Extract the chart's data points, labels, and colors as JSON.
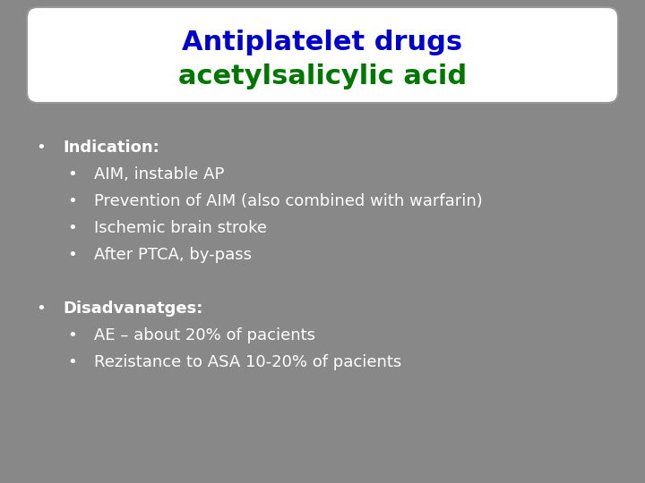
{
  "title_line1": "Antiplatelet drugs",
  "title_line2": "acetylsalicylic acid",
  "title_color1": "#0000cc",
  "title_color2": "#007700",
  "title_fontsize": 22,
  "bg_color": "#888888",
  "outer_bg": "#888888",
  "header_bg": "#ffffff",
  "header_border": "#999999",
  "text_color": "#ffffff",
  "body_lines": [
    {
      "text": "Indication:",
      "level": 0,
      "bold": true
    },
    {
      "text": "AIM, instable AP",
      "level": 1,
      "bold": false
    },
    {
      "text": "Prevention of AIM (also combined with warfarin)",
      "level": 1,
      "bold": false
    },
    {
      "text": "Ischemic brain stroke",
      "level": 1,
      "bold": false
    },
    {
      "text": "After PTCA, by-pass",
      "level": 1,
      "bold": false
    },
    {
      "text": "",
      "level": -1,
      "bold": false
    },
    {
      "text": "",
      "level": -1,
      "bold": false
    },
    {
      "text": "Disadvanatges:",
      "level": 0,
      "bold": true
    },
    {
      "text": "AE – about 20% of pacients",
      "level": 1,
      "bold": false
    },
    {
      "text": "Rezistance to ASA 10-20% of pacients",
      "level": 1,
      "bold": false
    }
  ],
  "body_fontsize": 13,
  "fig_width": 7.2,
  "fig_height": 5.4
}
